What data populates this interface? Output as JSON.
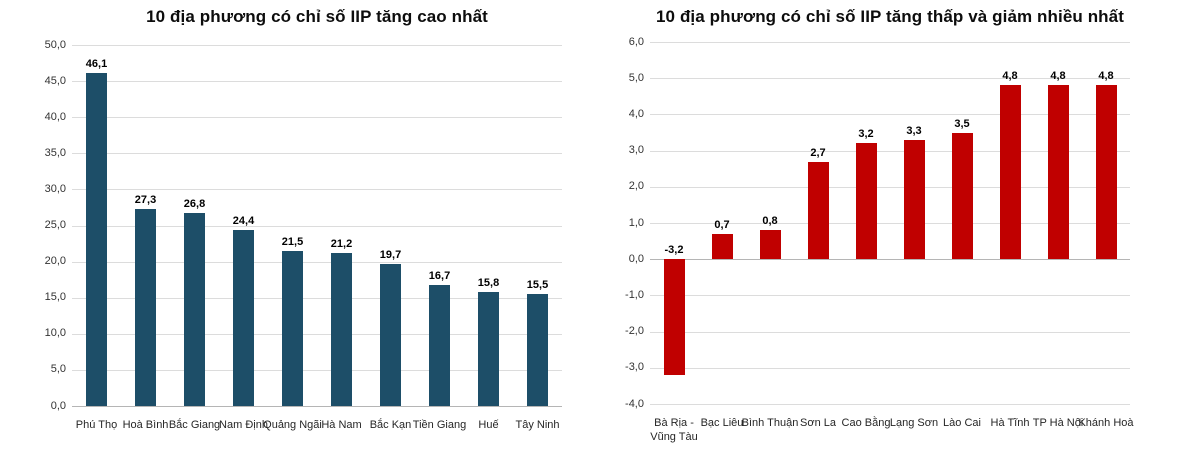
{
  "chart_data": [
    {
      "type": "bar",
      "title": "10 địa phương có chỉ số IIP tăng cao nhất",
      "categories": [
        "Phú Thọ",
        "Hoà Bình",
        "Bắc Giang",
        "Nam Định",
        "Quảng Ngãi",
        "Hà Nam",
        "Bắc Kạn",
        "Tiền Giang",
        "Huế",
        "Tây Ninh"
      ],
      "values": [
        46.1,
        27.3,
        26.8,
        24.4,
        21.5,
        21.2,
        19.7,
        16.7,
        15.8,
        15.5
      ],
      "value_labels": [
        "46,1",
        "27,3",
        "26,8",
        "24,4",
        "21,5",
        "21,2",
        "19,7",
        "16,7",
        "15,8",
        "15,5"
      ],
      "ylim": [
        0,
        50
      ],
      "ystep": 5,
      "ytick_labels": [
        "50,0",
        "45,0",
        "40,0",
        "35,0",
        "30,0",
        "25,0",
        "20,0",
        "15,0",
        "10,0",
        "5,0",
        "0,0"
      ],
      "xlabel": "",
      "ylabel": "",
      "grid": true,
      "legend": "none",
      "bar_color": "#1d4e68",
      "grid_color": "#dcdcdc",
      "zero_line_color": "#b5b5b5"
    },
    {
      "type": "bar",
      "title": "10 địa phương có chỉ số IIP tăng thấp và giảm nhiều nhất",
      "categories": [
        "Bà Rịa -\nVũng Tàu",
        "Bạc Liêu",
        "Bình Thuận",
        "Sơn La",
        "Cao Bằng",
        "Lạng Sơn",
        "Lào Cai",
        "Hà Tĩnh",
        "TP Hà Nội",
        "Khánh Hoà"
      ],
      "values": [
        -3.2,
        0.7,
        0.8,
        2.7,
        3.2,
        3.3,
        3.5,
        4.8,
        4.8,
        4.8
      ],
      "value_labels": [
        "-3,2",
        "0,7",
        "0,8",
        "2,7",
        "3,2",
        "3,3",
        "3,5",
        "4,8",
        "4,8",
        "4,8"
      ],
      "ylim": [
        -4,
        6
      ],
      "ystep": 1,
      "ytick_labels": [
        "6,0",
        "5,0",
        "4,0",
        "3,0",
        "2,0",
        "1,0",
        "0,0",
        "-1,0",
        "-2,0",
        "-3,0",
        "-4,0"
      ],
      "xlabel": "",
      "ylabel": "",
      "grid": true,
      "legend": "none",
      "bar_color": "#c00000",
      "grid_color": "#dcdcdc",
      "zero_line_color": "#b5b5b5"
    }
  ]
}
